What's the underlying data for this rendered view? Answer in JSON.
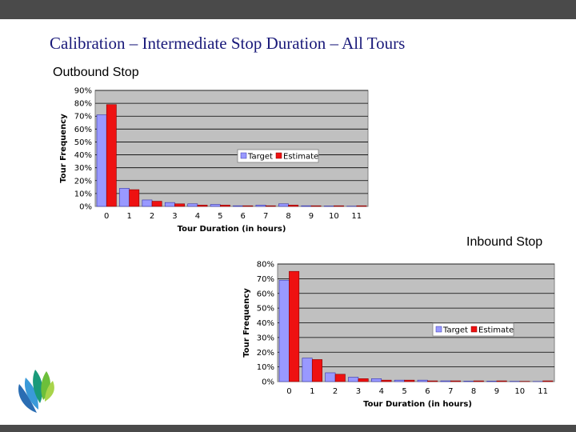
{
  "slide": {
    "title": "Calibration – Intermediate Stop Duration – All Tours",
    "outbound_label": "Outbound Stop",
    "inbound_label": "Inbound Stop"
  },
  "colors": {
    "target": "#9999ff",
    "estimate": "#ee1111",
    "plot_bg": "#c0c0c0",
    "header_bar": "#4a4a4a"
  },
  "chart_data": [
    {
      "type": "bar",
      "xlabel": "Tour Duration (in hours)",
      "ylabel": "Tour Frequency",
      "categories": [
        "0",
        "1",
        "2",
        "3",
        "4",
        "5",
        "6",
        "7",
        "8",
        "9",
        "10",
        "11"
      ],
      "ylim": [
        0,
        90
      ],
      "yticks": [
        "0%",
        "10%",
        "20%",
        "30%",
        "40%",
        "50%",
        "60%",
        "70%",
        "80%",
        "90%"
      ],
      "series": [
        {
          "name": "Target",
          "values": [
            71,
            14,
            5,
            3,
            2,
            1.5,
            0.5,
            1,
            2,
            0.5,
            0.3,
            0.2
          ]
        },
        {
          "name": "Estimate",
          "values": [
            79,
            13,
            4,
            2,
            1,
            1,
            0.5,
            0.5,
            1,
            0.5,
            0.5,
            0.5
          ]
        }
      ],
      "legend": "center-right",
      "grid": true
    },
    {
      "type": "bar",
      "xlabel": "Tour Duration (in hours)",
      "ylabel": "Tour Frequency",
      "categories": [
        "0",
        "1",
        "2",
        "3",
        "4",
        "5",
        "6",
        "7",
        "8",
        "9",
        "10",
        "11"
      ],
      "ylim": [
        0,
        80
      ],
      "yticks": [
        "0%",
        "10%",
        "20%",
        "30%",
        "40%",
        "50%",
        "60%",
        "70%",
        "80%"
      ],
      "series": [
        {
          "name": "Target",
          "values": [
            69,
            16,
            6,
            3,
            2,
            1,
            1,
            0.5,
            0.3,
            0.3,
            0.2,
            0.1
          ]
        },
        {
          "name": "Estimate",
          "values": [
            75,
            15,
            5,
            2,
            1,
            1,
            0.5,
            0.5,
            0.5,
            0.5,
            0.2,
            0.5
          ]
        }
      ],
      "legend": "center-right",
      "grid": true
    }
  ]
}
